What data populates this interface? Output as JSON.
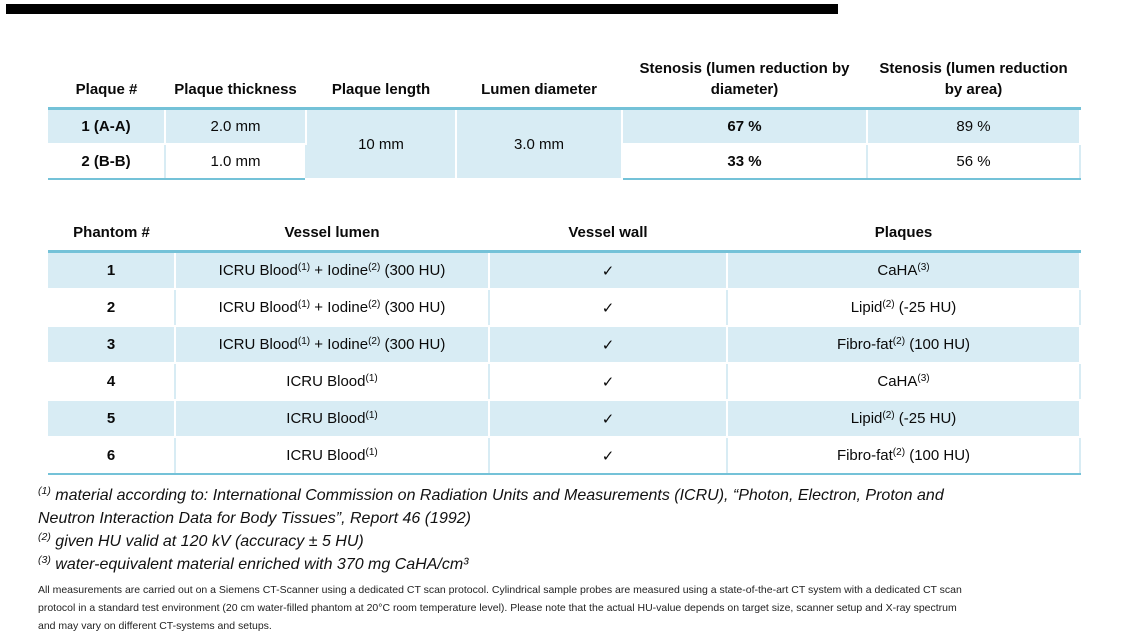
{
  "page": {
    "background": "#ffffff",
    "top_bar_color": "#000000",
    "accent_teal": "#74c2d8",
    "cell_blue": "#d8ecf4"
  },
  "plaque_table": {
    "headers": [
      "Plaque #",
      "Plaque thickness",
      "Plaque length",
      "Lumen diameter",
      "Stenosis (lumen reduction by diameter)",
      "Stenosis (lumen reduction by area)"
    ],
    "rows": [
      {
        "plaque": "1 (A-A)",
        "thickness": "2.0 mm",
        "stenosis_diameter": "67 %",
        "stenosis_area": "89 %"
      },
      {
        "plaque": "2 (B-B)",
        "thickness": "1.0 mm",
        "stenosis_diameter": "33 %",
        "stenosis_area": "56 %"
      }
    ],
    "merged": {
      "plaque_length": "10 mm",
      "lumen_diameter": "3.0 mm"
    }
  },
  "phantom_table": {
    "headers": [
      "Phantom #",
      "Vessel lumen",
      "Vessel wall",
      "Plaques"
    ],
    "rows": [
      {
        "num": "1",
        "lumen": "ICRU Blood^(1)^ + Iodine^(2)^ (300 HU)",
        "wall": "✓",
        "plaque": "CaHA^(3)^"
      },
      {
        "num": "2",
        "lumen": "ICRU Blood^(1)^ + Iodine^(2)^ (300 HU)",
        "wall": "✓",
        "plaque": "Lipid^(2)^ (-25 HU)"
      },
      {
        "num": "3",
        "lumen": "ICRU Blood^(1)^ + Iodine^(2)^ (300 HU)",
        "wall": "✓",
        "plaque": "Fibro-fat^(2)^ (100 HU)"
      },
      {
        "num": "4",
        "lumen": "ICRU Blood^(1)^",
        "wall": "✓",
        "plaque": "CaHA^(3)^"
      },
      {
        "num": "5",
        "lumen": "ICRU Blood^(1)^",
        "wall": "✓",
        "plaque": "Lipid^(2)^ (-25 HU)"
      },
      {
        "num": "6",
        "lumen": "ICRU Blood^(1)^",
        "wall": "✓",
        "plaque": "Fibro-fat^(2)^ (100 HU)"
      }
    ]
  },
  "footnotes": [
    {
      "marker": "(1)",
      "lines": [
        "material according to: International Commission on Radiation Units and Measurements (ICRU), “Photon, Electron, Proton and",
        "Neutron Interaction Data for Body Tissues”, Report 46 (1992)"
      ]
    },
    {
      "marker": "(2)",
      "lines": [
        "given HU valid at 120 kV (accuracy ± 5 HU)"
      ]
    },
    {
      "marker": "(3)",
      "lines": [
        "water-equivalent material enriched with 370 mg CaHA/cm³"
      ]
    }
  ],
  "disclaimer": {
    "lines": [
      "All measurements are carried out on a Siemens CT-Scanner using a dedicated CT scan protocol. Cylindrical sample probes are measured using a state-of-the-art CT system with a dedicated CT scan",
      "protocol in a standard test environment (20 cm water-filled phantom at 20°C room temperature level). Please note that the actual HU-value depends on target size, scanner setup and X-ray spectrum",
      "and may vary on different CT-systems and setups."
    ]
  }
}
